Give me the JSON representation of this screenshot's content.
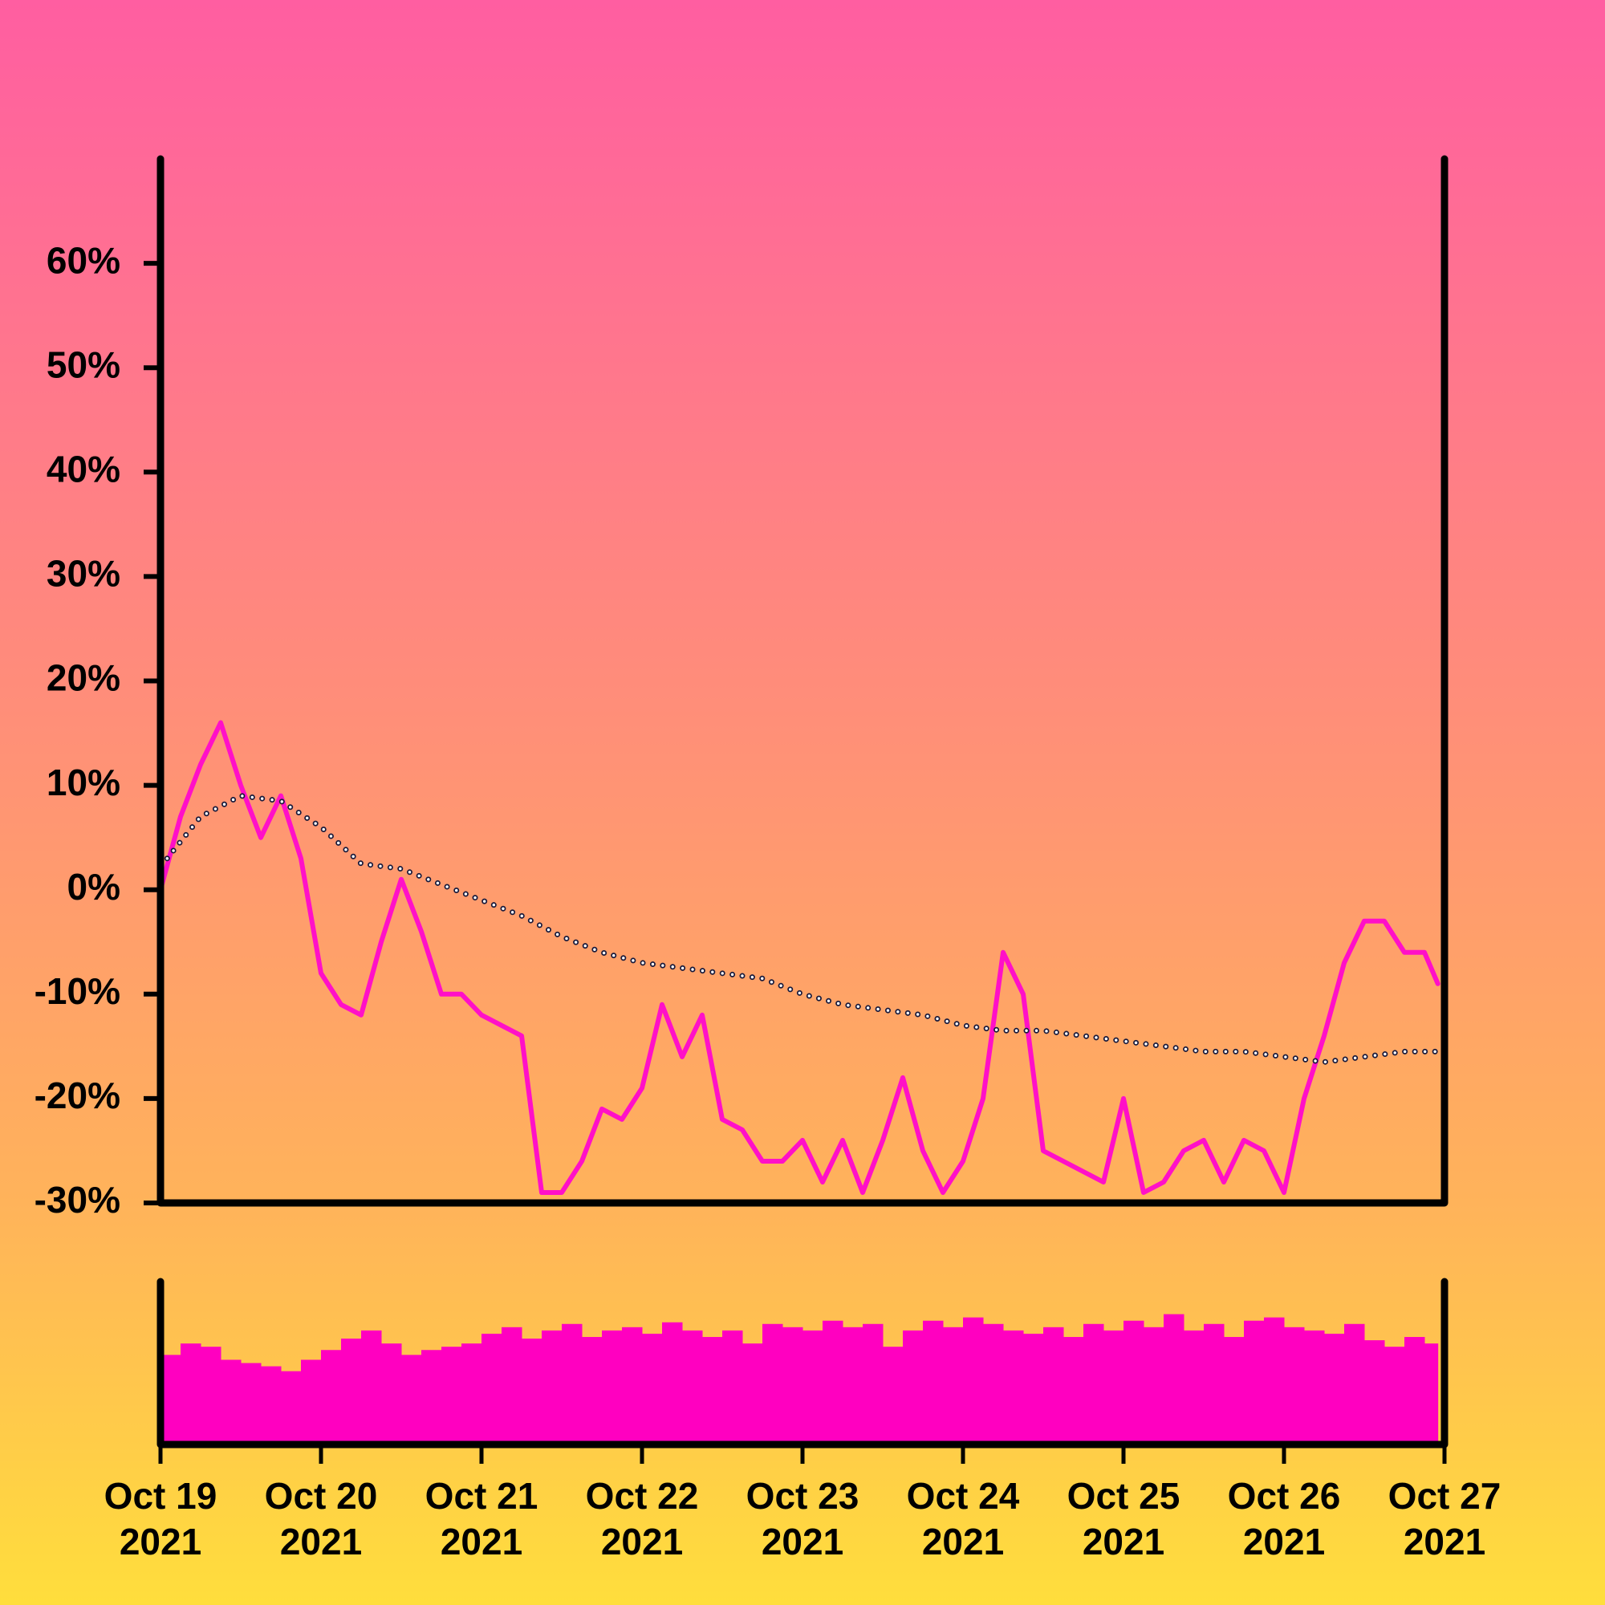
{
  "chart_data": {
    "type": "line",
    "xlim": [
      "2021-10-19T00:00",
      "2021-10-27T00:00"
    ],
    "xticks": [
      {
        "value": "2021-10-19T00:00",
        "label": "Oct 19\n2021"
      },
      {
        "value": "2021-10-20T00:00",
        "label": "Oct 20\n2021"
      },
      {
        "value": "2021-10-21T00:00",
        "label": "Oct 21\n2021"
      },
      {
        "value": "2021-10-22T00:00",
        "label": "Oct 22\n2021"
      },
      {
        "value": "2021-10-23T00:00",
        "label": "Oct 23\n2021"
      },
      {
        "value": "2021-10-24T00:00",
        "label": "Oct 24\n2021"
      },
      {
        "value": "2021-10-25T00:00",
        "label": "Oct 25\n2021"
      },
      {
        "value": "2021-10-26T00:00",
        "label": "Oct 26\n2021"
      },
      {
        "value": "2021-10-27T00:00",
        "label": "Oct 27\n2021"
      }
    ],
    "ylim": [
      -30,
      70
    ],
    "yticks": [
      {
        "value": -30,
        "label": "-30%"
      },
      {
        "value": -20,
        "label": "-20%"
      },
      {
        "value": -10,
        "label": "-10%"
      },
      {
        "value": 0,
        "label": "0%"
      },
      {
        "value": 10,
        "label": "10%"
      },
      {
        "value": 20,
        "label": "20%"
      },
      {
        "value": 30,
        "label": "30%"
      },
      {
        "value": 40,
        "label": "40%"
      },
      {
        "value": 50,
        "label": "50%"
      },
      {
        "value": 60,
        "label": "60%"
      }
    ],
    "series": [
      {
        "color": "#ff10c8",
        "x": [
          "2021-10-19T00:00",
          "2021-10-19T03:00",
          "2021-10-19T06:00",
          "2021-10-19T09:00",
          "2021-10-19T12:00",
          "2021-10-19T15:00",
          "2021-10-19T18:00",
          "2021-10-19T21:00",
          "2021-10-20T00:00",
          "2021-10-20T03:00",
          "2021-10-20T06:00",
          "2021-10-20T09:00",
          "2021-10-20T12:00",
          "2021-10-20T15:00",
          "2021-10-20T18:00",
          "2021-10-20T21:00",
          "2021-10-21T00:00",
          "2021-10-21T03:00",
          "2021-10-21T06:00",
          "2021-10-21T09:00",
          "2021-10-21T12:00",
          "2021-10-21T15:00",
          "2021-10-21T18:00",
          "2021-10-21T21:00",
          "2021-10-22T00:00",
          "2021-10-22T03:00",
          "2021-10-22T06:00",
          "2021-10-22T09:00",
          "2021-10-22T12:00",
          "2021-10-22T15:00",
          "2021-10-22T18:00",
          "2021-10-22T21:00",
          "2021-10-23T00:00",
          "2021-10-23T03:00",
          "2021-10-23T06:00",
          "2021-10-23T09:00",
          "2021-10-23T12:00",
          "2021-10-23T15:00",
          "2021-10-23T18:00",
          "2021-10-23T21:00",
          "2021-10-24T00:00",
          "2021-10-24T03:00",
          "2021-10-24T06:00",
          "2021-10-24T09:00",
          "2021-10-24T12:00",
          "2021-10-24T15:00",
          "2021-10-24T18:00",
          "2021-10-24T21:00",
          "2021-10-25T00:00",
          "2021-10-25T03:00",
          "2021-10-25T06:00",
          "2021-10-25T09:00",
          "2021-10-25T12:00",
          "2021-10-25T15:00",
          "2021-10-25T18:00",
          "2021-10-25T21:00",
          "2021-10-26T00:00",
          "2021-10-26T03:00",
          "2021-10-26T06:00",
          "2021-10-26T09:00",
          "2021-10-26T12:00",
          "2021-10-26T15:00",
          "2021-10-26T18:00",
          "2021-10-26T21:00",
          "2021-10-26T23:00"
        ],
        "values": [
          0,
          7,
          12,
          16,
          10,
          5,
          9,
          3,
          -8,
          -11,
          -12,
          -5,
          1,
          -4,
          -10,
          -10,
          -12,
          -13,
          -14,
          -29,
          -29,
          -26,
          -21,
          -22,
          -19,
          -11,
          -16,
          -12,
          -22,
          -23,
          -26,
          -26,
          -24,
          -28,
          -24,
          -29,
          -24,
          -18,
          -25,
          -29,
          -26,
          -20,
          -6,
          -10,
          -25,
          -26,
          -27,
          -28,
          -20,
          -29,
          -28,
          -25,
          -24,
          -28,
          -24,
          -25,
          -29,
          -20,
          -14,
          -7,
          -3,
          -3,
          -6,
          -6,
          -9
        ]
      },
      {
        "color": "#1a1a3a",
        "x": [
          "2021-10-19T01:00",
          "2021-10-19T06:00",
          "2021-10-19T12:00",
          "2021-10-19T18:00",
          "2021-10-20T00:00",
          "2021-10-20T06:00",
          "2021-10-20T12:00",
          "2021-10-20T18:00",
          "2021-10-21T00:00",
          "2021-10-21T06:00",
          "2021-10-21T12:00",
          "2021-10-21T18:00",
          "2021-10-22T00:00",
          "2021-10-22T06:00",
          "2021-10-22T12:00",
          "2021-10-22T18:00",
          "2021-10-23T00:00",
          "2021-10-23T06:00",
          "2021-10-23T12:00",
          "2021-10-23T18:00",
          "2021-10-24T00:00",
          "2021-10-24T06:00",
          "2021-10-24T12:00",
          "2021-10-24T18:00",
          "2021-10-25T00:00",
          "2021-10-25T06:00",
          "2021-10-25T12:00",
          "2021-10-25T18:00",
          "2021-10-26T00:00",
          "2021-10-26T06:00",
          "2021-10-26T12:00",
          "2021-10-26T18:00",
          "2021-10-26T23:00"
        ],
        "values": [
          3,
          7,
          9,
          8.5,
          6,
          2.5,
          2,
          0.5,
          -1,
          -2.5,
          -4.5,
          -6,
          -7,
          -7.5,
          -8,
          -8.5,
          -10,
          -11,
          -11.5,
          -12,
          -13,
          -13.5,
          -13.5,
          -14,
          -14.5,
          -15,
          -15.5,
          -15.5,
          -16,
          -16.5,
          -16,
          -15.5,
          -15.5
        ]
      }
    ],
    "volume": {
      "color": "#ff00c0",
      "ylim": [
        0,
        100
      ],
      "values": [
        55,
        62,
        60,
        52,
        50,
        48,
        45,
        52,
        58,
        65,
        70,
        62,
        55,
        58,
        60,
        62,
        68,
        72,
        65,
        70,
        74,
        66,
        70,
        72,
        68,
        75,
        70,
        66,
        70,
        62,
        74,
        72,
        70,
        76,
        72,
        74,
        60,
        70,
        76,
        72,
        78,
        74,
        70,
        68,
        72,
        66,
        74,
        70,
        76,
        72,
        80,
        70,
        74,
        66,
        76,
        78,
        72,
        70,
        68,
        74,
        64,
        60,
        66,
        62
      ]
    }
  }
}
